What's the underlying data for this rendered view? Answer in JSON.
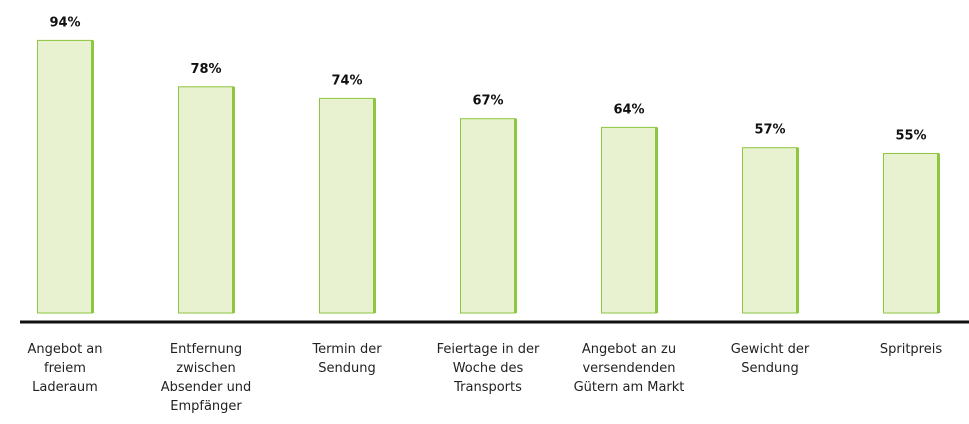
{
  "chart_data": {
    "type": "bar",
    "categories": [
      "Angebot an freiem Laderaum",
      "Entfernung zwischen Absender und Empfänger",
      "Termin der Sendung",
      "Feiertage in der Woche des Transports",
      "Angebot an zu versendenden Gütern am Markt",
      "Gewicht der Sendung",
      "Spritpreis"
    ],
    "values": [
      94,
      78,
      74,
      67,
      64,
      57,
      55
    ],
    "value_labels": [
      "94%",
      "78%",
      "74%",
      "67%",
      "64%",
      "57%",
      "55%"
    ],
    "color": "#e8f1d0",
    "edge_color": "#8dc63f"
  }
}
